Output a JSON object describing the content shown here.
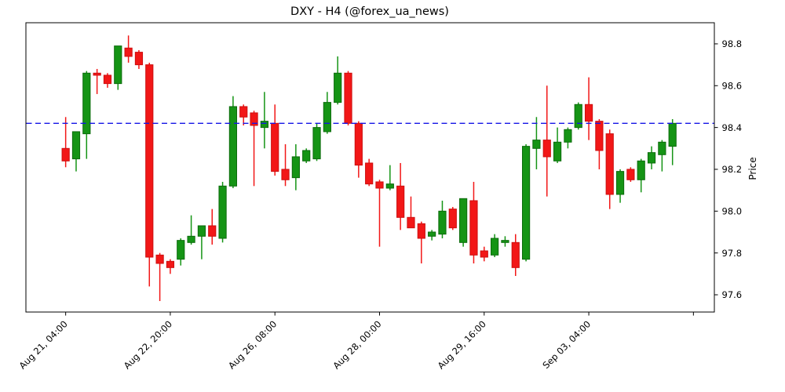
{
  "window": {
    "background": "#ffffff"
  },
  "chart_data": {
    "type": "candlestick",
    "title": "DXY - H4 (@forex_ua_news)",
    "ylabel": "Price",
    "grid": false,
    "legend": null,
    "x_tick_labels": [
      "Aug 21, 04:00",
      "Aug 22, 20:00",
      "Aug 26, 08:00",
      "Aug 28, 00:00",
      "Aug 29, 16:00",
      "Sep 03, 04:00",
      ""
    ],
    "x_tick_indices": [
      0,
      10,
      20,
      30,
      40,
      50,
      60
    ],
    "y_ticks": [
      "98.8",
      "98.6",
      "98.4",
      "98.2",
      "98.0",
      "97.8",
      "97.6"
    ],
    "ylim": [
      97.5175,
      98.901
    ],
    "xlim_index": [
      -3.8,
      62.0
    ],
    "hline": {
      "value": 98.42,
      "color": "#1515e6",
      "style": "dashed"
    },
    "colors": {
      "up_fill": "#159415",
      "up_edge": "#0c6b0c",
      "down_fill": "#f21717",
      "down_edge": "#cc0f0f",
      "axis": "#000000"
    },
    "ohlc": [
      [
        98.3,
        98.45,
        98.21,
        98.24
      ],
      [
        98.25,
        98.38,
        98.19,
        98.38
      ],
      [
        98.37,
        98.67,
        98.25,
        98.66
      ],
      [
        98.66,
        98.68,
        98.56,
        98.65
      ],
      [
        98.65,
        98.66,
        98.59,
        98.61
      ],
      [
        98.61,
        98.79,
        98.58,
        98.79
      ],
      [
        98.78,
        98.84,
        98.71,
        98.74
      ],
      [
        98.76,
        98.77,
        98.68,
        98.7
      ],
      [
        98.7,
        98.71,
        97.64,
        97.78
      ],
      [
        97.79,
        97.8,
        97.57,
        97.75
      ],
      [
        97.76,
        97.77,
        97.7,
        97.73
      ],
      [
        97.77,
        97.87,
        97.74,
        97.86
      ],
      [
        97.85,
        97.98,
        97.84,
        97.88
      ],
      [
        97.88,
        97.93,
        97.77,
        97.93
      ],
      [
        97.93,
        98.01,
        97.84,
        97.88
      ],
      [
        97.87,
        98.14,
        97.85,
        98.12
      ],
      [
        98.12,
        98.55,
        98.11,
        98.5
      ],
      [
        98.5,
        98.51,
        98.41,
        98.45
      ],
      [
        98.47,
        98.48,
        98.12,
        98.41
      ],
      [
        98.4,
        98.57,
        98.3,
        98.43
      ],
      [
        98.42,
        98.51,
        98.17,
        98.19
      ],
      [
        98.2,
        98.32,
        98.12,
        98.15
      ],
      [
        98.16,
        98.32,
        98.1,
        98.26
      ],
      [
        98.24,
        98.3,
        98.23,
        98.29
      ],
      [
        98.25,
        98.42,
        98.24,
        98.4
      ],
      [
        98.38,
        98.57,
        98.37,
        98.52
      ],
      [
        98.52,
        98.74,
        98.51,
        98.66
      ],
      [
        98.66,
        98.67,
        98.41,
        98.42
      ],
      [
        98.42,
        98.43,
        98.16,
        98.22
      ],
      [
        98.23,
        98.25,
        98.12,
        98.13
      ],
      [
        98.14,
        98.15,
        97.83,
        98.11
      ],
      [
        98.11,
        98.22,
        98.1,
        98.13
      ],
      [
        98.12,
        98.23,
        97.91,
        97.97
      ],
      [
        97.97,
        98.07,
        97.92,
        97.92
      ],
      [
        97.94,
        97.95,
        97.75,
        97.87
      ],
      [
        97.88,
        97.91,
        97.86,
        97.9
      ],
      [
        97.89,
        98.05,
        97.87,
        98.0
      ],
      [
        98.01,
        98.02,
        97.91,
        97.92
      ],
      [
        97.85,
        98.06,
        97.83,
        98.06
      ],
      [
        98.05,
        98.14,
        97.75,
        97.79
      ],
      [
        97.81,
        97.83,
        97.76,
        97.78
      ],
      [
        97.79,
        97.89,
        97.78,
        97.87
      ],
      [
        97.85,
        97.88,
        97.83,
        97.86
      ],
      [
        97.85,
        97.89,
        97.69,
        97.73
      ],
      [
        97.77,
        98.32,
        97.76,
        98.31
      ],
      [
        98.3,
        98.45,
        98.2,
        98.34
      ],
      [
        98.34,
        98.6,
        98.07,
        98.26
      ],
      [
        98.24,
        98.4,
        98.23,
        98.33
      ],
      [
        98.33,
        98.4,
        98.3,
        98.39
      ],
      [
        98.4,
        98.52,
        98.39,
        98.51
      ],
      [
        98.51,
        98.64,
        98.34,
        98.43
      ],
      [
        98.43,
        98.44,
        98.2,
        98.29
      ],
      [
        98.37,
        98.39,
        98.01,
        98.08
      ],
      [
        98.08,
        98.2,
        98.04,
        98.19
      ],
      [
        98.2,
        98.21,
        98.14,
        98.15
      ],
      [
        98.15,
        98.25,
        98.09,
        98.24
      ],
      [
        98.23,
        98.31,
        98.2,
        98.28
      ],
      [
        98.27,
        98.34,
        98.19,
        98.33
      ],
      [
        98.31,
        98.44,
        98.22,
        98.42
      ]
    ]
  }
}
